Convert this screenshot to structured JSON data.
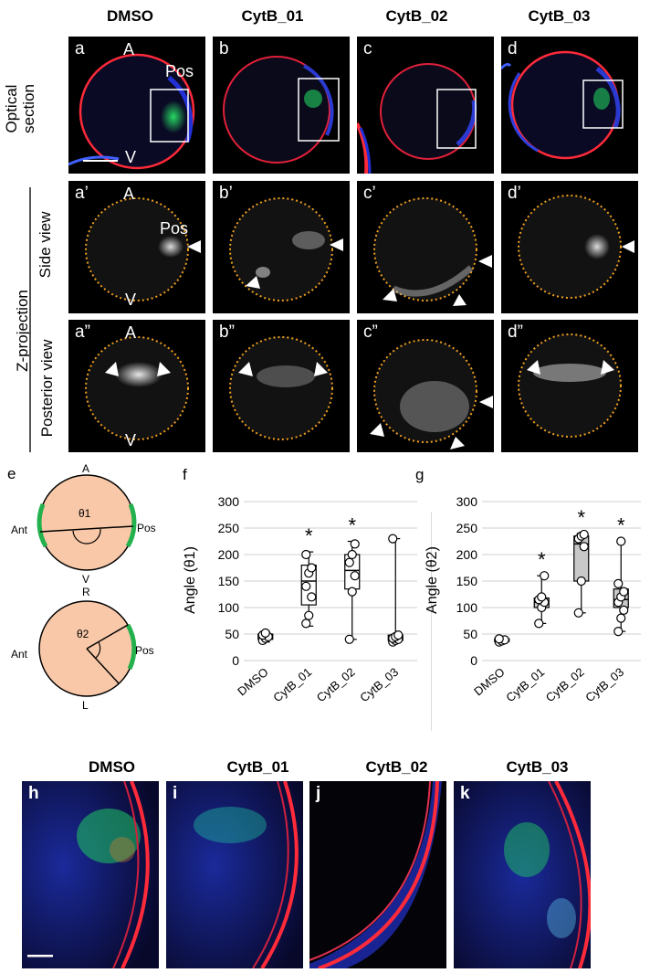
{
  "columns": [
    "DMSO",
    "CytB_01",
    "CytB_02",
    "CytB_03"
  ],
  "row_labels": {
    "optical": [
      "Optical",
      "section"
    ],
    "zproj": "Z-projection",
    "side": "Side view",
    "posterior": "Posterior view"
  },
  "panels_top": [
    "a",
    "b",
    "c",
    "d"
  ],
  "panels_side": [
    "a’",
    "b’",
    "c’",
    "d’"
  ],
  "panels_post": [
    "a”",
    "b”",
    "c”",
    "d”"
  ],
  "axis_text": {
    "A": "A",
    "V": "V",
    "Pos": "Pos"
  },
  "schematic": {
    "label": "e",
    "top": {
      "A": "A",
      "V": "V",
      "Ant": "Ant",
      "Pos": "Pos",
      "theta": "θ1"
    },
    "bottom": {
      "R": "R",
      "L": "L",
      "Ant": "Ant",
      "Pos": "Pos",
      "theta": "θ2"
    }
  },
  "chart_data": [
    {
      "label": "f",
      "type": "box",
      "ylabel": "Angle (θ1)",
      "ylim": [
        0,
        300
      ],
      "yticks": [
        0,
        50,
        100,
        150,
        200,
        250,
        300
      ],
      "grid": true,
      "categories": [
        "DMSO",
        "CytB_01",
        "CytB_02",
        "CytB_03"
      ],
      "boxes": [
        {
          "min": 35,
          "q1": 40,
          "median": 45,
          "q3": 50,
          "max": 55
        },
        {
          "min": 65,
          "q1": 105,
          "median": 150,
          "q3": 180,
          "max": 205
        },
        {
          "min": 40,
          "q1": 135,
          "median": 170,
          "q3": 200,
          "max": 225
        },
        {
          "min": 35,
          "q1": 38,
          "median": 42,
          "q3": 48,
          "max": 230
        }
      ],
      "points": [
        [
          38,
          42,
          45,
          48,
          52
        ],
        [
          70,
          85,
          120,
          140,
          165,
          175,
          200
        ],
        [
          40,
          130,
          160,
          185,
          200,
          220
        ],
        [
          35,
          38,
          40,
          42,
          45,
          48,
          230
        ]
      ],
      "significant": [
        false,
        true,
        true,
        false
      ]
    },
    {
      "label": "g",
      "type": "box",
      "ylabel": "Angle (θ2)",
      "ylim": [
        0,
        300
      ],
      "yticks": [
        0,
        50,
        100,
        150,
        200,
        250,
        300
      ],
      "grid": true,
      "categories": [
        "DMSO",
        "CytB_01",
        "CytB_02",
        "CytB_03"
      ],
      "boxes": [
        {
          "min": 33,
          "q1": 36,
          "median": 38,
          "q3": 41,
          "max": 44
        },
        {
          "min": 70,
          "q1": 100,
          "median": 110,
          "q3": 118,
          "max": 160
        },
        {
          "min": 90,
          "q1": 150,
          "median": 220,
          "q3": 235,
          "max": 240
        },
        {
          "min": 55,
          "q1": 100,
          "median": 115,
          "q3": 135,
          "max": 225
        }
      ],
      "points": [
        [
          35,
          37,
          39,
          41
        ],
        [
          70,
          100,
          110,
          115,
          120,
          160
        ],
        [
          90,
          150,
          215,
          230,
          235,
          238
        ],
        [
          55,
          80,
          95,
          110,
          120,
          130,
          145,
          225
        ]
      ],
      "significant": [
        false,
        true,
        true,
        true
      ]
    }
  ],
  "star": "*",
  "bottom_columns": [
    "DMSO",
    "CytB_01",
    "CytB_02",
    "CytB_03"
  ],
  "bottom_panels": [
    "h",
    "i",
    "j",
    "k"
  ],
  "colors": {
    "red": "#ff2a3a",
    "blue": "#2230d8",
    "green": "#22e060",
    "orange": "#f0a020",
    "peach": "#f8c8a8",
    "schematic_green": "#22b14c"
  }
}
